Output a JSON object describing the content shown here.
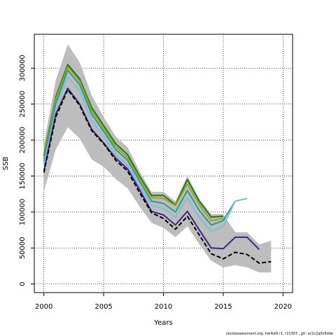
{
  "chart_data": {
    "type": "line",
    "xlabel": "Years",
    "ylabel": "SSB",
    "xlim": [
      1999.2,
      2020.8
    ],
    "ylim": [
      -12000,
      347000
    ],
    "x_ticks": [
      2000,
      2005,
      2010,
      2015,
      2020
    ],
    "x_tick_labels": [
      "2000",
      "2005",
      "2010",
      "2015",
      "2020"
    ],
    "y_ticks": [
      0,
      50000,
      100000,
      150000,
      200000,
      250000,
      300000
    ],
    "y_tick_labels": [
      "0",
      "50000",
      "100000",
      "150000",
      "200000",
      "250000",
      "300000"
    ],
    "grid": true,
    "footer_text": "stockassessment.org, her6aN r1, r15303 , git: ec2c2a0c6dde",
    "confidence_band": {
      "x": [
        2000,
        2001,
        2002,
        2003,
        2004,
        2005,
        2006,
        2007,
        2008,
        2009,
        2010,
        2011,
        2012,
        2013,
        2014,
        2015,
        2016,
        2017,
        2018,
        2019
      ],
      "upper": [
        195000,
        283000,
        333000,
        308000,
        262000,
        232000,
        205000,
        190000,
        157000,
        128000,
        128000,
        115000,
        150000,
        118000,
        97000,
        97000,
        72000,
        72000,
        55000,
        60000
      ],
      "lower": [
        128000,
        187000,
        218000,
        202000,
        173000,
        163000,
        146000,
        133000,
        108000,
        85000,
        78000,
        65000,
        80000,
        55000,
        32000,
        23000,
        26000,
        23000,
        16000,
        16000
      ]
    },
    "series": [
      {
        "color": "#1a7a1a",
        "dash": "solid",
        "x": [
          2000,
          2001,
          2002,
          2003,
          2004,
          2005,
          2006,
          2007,
          2008,
          2009,
          2010,
          2011,
          2012,
          2013,
          2014,
          2015
        ],
        "values": [
          178000,
          260000,
          305000,
          285000,
          245000,
          220000,
          195000,
          180000,
          150000,
          123000,
          123000,
          110000,
          145000,
          115000,
          93000,
          94000
        ]
      },
      {
        "color": "#a0a020",
        "dash": "solid",
        "x": [
          2000,
          2001,
          2002,
          2003,
          2004,
          2005,
          2006,
          2007,
          2008,
          2009,
          2010,
          2011,
          2012,
          2013,
          2014,
          2015
        ],
        "values": [
          174000,
          257000,
          302000,
          282000,
          241000,
          216000,
          191000,
          176000,
          147000,
          120000,
          119000,
          109000,
          139000,
          110000,
          88000,
          91000
        ]
      },
      {
        "color": "#2e9a8a",
        "dash": "solid",
        "x": [
          2000,
          2001,
          2002,
          2003,
          2004,
          2005,
          2006,
          2007,
          2008,
          2009,
          2010,
          2011,
          2012,
          2013,
          2014,
          2015,
          2016
        ],
        "values": [
          170000,
          251000,
          297000,
          277000,
          236000,
          212000,
          187000,
          172000,
          143000,
          115000,
          112000,
          100000,
          130000,
          102000,
          82000,
          88000,
          115000
        ]
      },
      {
        "color": "#7ac0d8",
        "dash": "solid",
        "x": [
          2000,
          2001,
          2002,
          2003,
          2004,
          2005,
          2006,
          2007,
          2008,
          2009,
          2010,
          2011,
          2012,
          2013,
          2014,
          2015,
          2016,
          2017
        ],
        "values": [
          165000,
          244000,
          288000,
          268000,
          227000,
          205000,
          180000,
          165000,
          136000,
          109000,
          105000,
          93000,
          120000,
          92000,
          73000,
          80000,
          115000,
          119000
        ]
      },
      {
        "color": "#3a2a82",
        "dash": "solid",
        "x": [
          2000,
          2001,
          2002,
          2003,
          2004,
          2005,
          2006,
          2007,
          2008,
          2009,
          2010,
          2011,
          2012,
          2013,
          2014,
          2015,
          2016,
          2017,
          2018
        ],
        "values": [
          157000,
          236000,
          272000,
          250000,
          215000,
          196000,
          175000,
          160000,
          131000,
          101000,
          96000,
          82000,
          101000,
          75000,
          50000,
          49000,
          65000,
          65000,
          48000
        ]
      },
      {
        "color": "#000000",
        "dash": "dashed",
        "x": [
          2000,
          2001,
          2002,
          2003,
          2004,
          2005,
          2006,
          2007,
          2008,
          2009,
          2010,
          2011,
          2012,
          2013,
          2014,
          2015,
          2016,
          2017,
          2018,
          2019
        ],
        "values": [
          155000,
          232000,
          270000,
          248000,
          213000,
          195000,
          172000,
          157000,
          127000,
          99000,
          91000,
          76000,
          94000,
          68000,
          42000,
          35000,
          44000,
          41000,
          29000,
          31000
        ]
      }
    ]
  }
}
